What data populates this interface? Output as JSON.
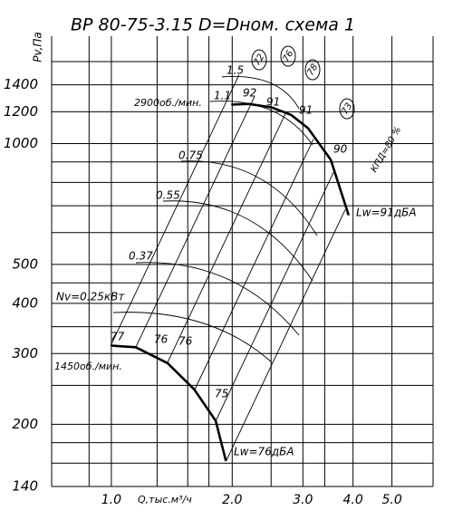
{
  "chart_data": {
    "type": "line",
    "title": "ВР 80-75-3.15 D=Dном. схема 1",
    "y_label": "Pv,Па",
    "x_label": "Q,тыс.м³/ч",
    "log_x": true,
    "log_y": true,
    "grid": true,
    "xlim": [
      0.71,
      6.33
    ],
    "ylim": [
      140,
      1850
    ],
    "xticks": [
      {
        "value": 1,
        "label": "1.0"
      },
      {
        "value": 2,
        "label": "2.0"
      },
      {
        "value": 3,
        "label": "3.0"
      },
      {
        "value": 4,
        "label": "4.0"
      },
      {
        "value": 5,
        "label": "5.0"
      }
    ],
    "yticks": [
      140,
      200,
      300,
      400,
      500,
      1000,
      1200,
      1400
    ],
    "x_minor_grid": [
      0.88,
      1.3,
      1.55,
      1.75,
      2.5,
      3.4
    ],
    "y_minor_grid": [
      160,
      180,
      250,
      350,
      450,
      600,
      700,
      800,
      900,
      1600
    ],
    "series": [
      {
        "name": "2900об./мин.",
        "color": "#000000",
        "x": [
          1.99,
          2.2,
          2.51,
          2.8,
          3.09,
          3.52,
          3.9
        ],
        "values": [
          1250,
          1255,
          1230,
          1180,
          1092,
          911,
          663
        ]
      },
      {
        "name": "1450об./мин.",
        "color": "#000000",
        "x": [
          1.0,
          1.15,
          1.38,
          1.61,
          1.82,
          1.93
        ],
        "values": [
          314,
          311,
          284,
          244,
          204,
          162
        ]
      }
    ],
    "annotations": [
      "1.5",
      "1.1",
      "0.75",
      "0.55",
      "0.37",
      "Nv=0.25кВт",
      "92",
      "91",
      "91",
      "90",
      "77",
      "76",
      "76",
      "75",
      "72",
      "76",
      "78",
      "73",
      "КПД=80 %",
      "Lw=91дБA",
      "Lw=76дБA"
    ]
  }
}
